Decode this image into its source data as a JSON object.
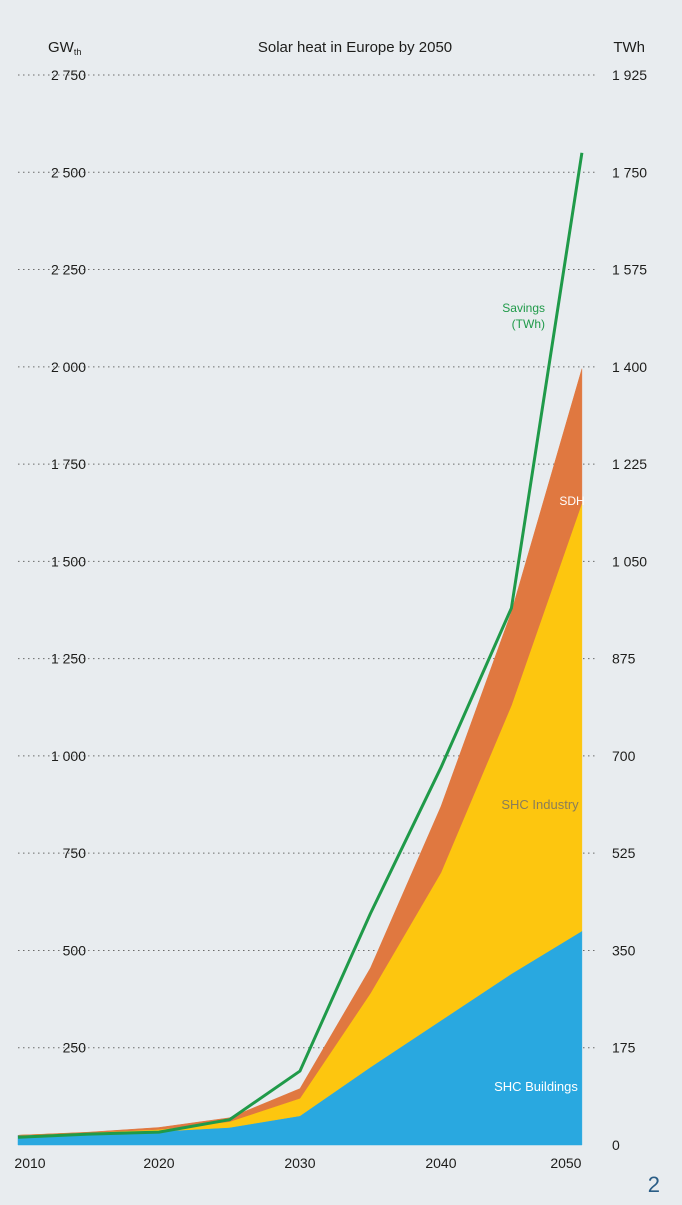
{
  "page_number": "2",
  "chart_data": {
    "type": "area",
    "title": "Solar heat in Europe by 2050",
    "left_unit": "GW",
    "left_unit_sub": "th",
    "right_unit": "TWh",
    "left_ticks": [
      "",
      "250",
      "500",
      "750",
      "1 000",
      "1 250",
      "1 500",
      "1 750",
      "2 000",
      "2 250",
      "2 500",
      "2 750"
    ],
    "right_ticks": [
      "0",
      "175",
      "350",
      "525",
      "700",
      "875",
      "1 050",
      "1 225",
      "1 400",
      "1 575",
      "1 750",
      "1 925"
    ],
    "left_ylim": [
      0,
      2750
    ],
    "right_ylim": [
      0,
      1925
    ],
    "x_ticks": [
      2010,
      2020,
      2030,
      2040,
      2050
    ],
    "xlim": [
      2010,
      2051
    ],
    "grid": true,
    "x": [
      2010,
      2015,
      2020,
      2025,
      2030,
      2035,
      2040,
      2045,
      2050
    ],
    "series": [
      {
        "name": "SHC Buildings",
        "color": "#29a8e0",
        "values": [
          25,
          30,
          35,
          45,
          75,
          200,
          320,
          440,
          550
        ]
      },
      {
        "name": "SHC Industry",
        "color": "#fdc60f",
        "values": [
          0,
          2,
          5,
          15,
          45,
          190,
          380,
          690,
          1100
        ]
      },
      {
        "name": "SDH",
        "color": "#e07840",
        "values": [
          0,
          1,
          5,
          10,
          25,
          65,
          170,
          240,
          345
        ]
      }
    ],
    "savings": {
      "name": "Savings\n(TWh)",
      "color": "#1f9a49",
      "unit_axis": "right",
      "values": [
        20,
        28,
        33,
        65,
        190,
        595,
        970,
        1380,
        2550
      ]
    },
    "series_labels": [
      {
        "name": "SHC Buildings",
        "color": "#ffffff"
      },
      {
        "name": "SHC Industry",
        "color": "#8a7d5a"
      },
      {
        "name": "SDH",
        "color": "#ffffff"
      },
      {
        "name": "Savings",
        "color": "#1f9a49"
      },
      {
        "name": "(TWh)",
        "color": "#1f9a49"
      }
    ]
  }
}
